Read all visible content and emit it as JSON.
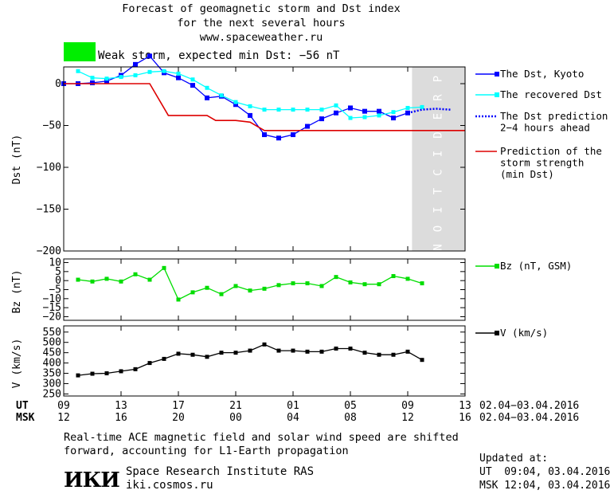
{
  "header": {
    "title_line1": "Forecast of geomagnetic storm and Dst index",
    "title_line2": "for the next several hours",
    "site": "www.spaceweather.ru"
  },
  "storm": {
    "label": "Weak storm, expected min Dst: −56 nT",
    "color": "#00ee00"
  },
  "prediction_band_text": "PREDICTION",
  "chart_data": [
    {
      "type": "line",
      "ylabel": "Dst (nT)",
      "ylim": [
        -200,
        20
      ],
      "yticks": [
        0,
        -50,
        -100,
        -150,
        -200
      ],
      "ytick_labels": [
        "0",
        "−50",
        "−100",
        "−150",
        "−200"
      ],
      "xlim": [
        9,
        37
      ],
      "prediction_start_x": 33.3,
      "series": [
        {
          "name": "The Dst, Kyoto",
          "color": "#0000ff",
          "marker": "square",
          "x": [
            9,
            10,
            11,
            12,
            13,
            14,
            15,
            16,
            17,
            18,
            19,
            20,
            21,
            22,
            23,
            24,
            25,
            26,
            27,
            28,
            29,
            30,
            31,
            32,
            33
          ],
          "y": [
            0,
            0,
            1,
            3,
            10,
            23,
            33,
            13,
            7,
            -2,
            -17,
            -15,
            -25,
            -38,
            -61,
            -65,
            -61,
            -51,
            -42,
            -35,
            -29,
            -33,
            -33,
            -41,
            -35
          ]
        },
        {
          "name": "The recovered Dst",
          "color": "#00ffff",
          "marker": "square",
          "x": [
            10,
            11,
            12,
            13,
            14,
            15,
            16,
            17,
            18,
            19,
            20,
            21,
            22,
            23,
            24,
            25,
            26,
            27,
            28,
            29,
            30,
            31,
            32,
            33,
            34
          ],
          "y": [
            15,
            7,
            6,
            8,
            10,
            14,
            15,
            12,
            5,
            -5,
            -14,
            -22,
            -27,
            -31,
            -31,
            -31,
            -31,
            -31,
            -26,
            -41,
            -40,
            -38,
            -34,
            -29,
            -28
          ]
        },
        {
          "name": "The Dst prediction 2−4 hours ahead",
          "color": "#0000ff",
          "style": "dotted",
          "x": [
            33,
            34,
            35,
            36
          ],
          "y": [
            -35,
            -31,
            -30,
            -31
          ]
        },
        {
          "name": "Prediction of the storm strength (min Dst)",
          "color": "#dd0000",
          "style": "step",
          "x": [
            9,
            15,
            16.3,
            19,
            19.6,
            21,
            22,
            23,
            24,
            25,
            26,
            27,
            28,
            29,
            30,
            31,
            32,
            33,
            34,
            35,
            36,
            37
          ],
          "y": [
            0,
            0,
            -38,
            -38,
            -44,
            -44,
            -46,
            -56,
            -56,
            -56,
            -56,
            -56,
            -56,
            -56,
            -56,
            -56,
            -56,
            -56,
            -56,
            -56,
            -56,
            -56
          ]
        }
      ]
    },
    {
      "type": "line",
      "ylabel": "Bz (nT)",
      "ylim": [
        -22,
        12
      ],
      "yticks": [
        10,
        5,
        0,
        -5,
        -10,
        -15,
        -20
      ],
      "ytick_labels": [
        "10",
        "5",
        "0",
        "−5",
        "−10",
        "−15",
        "−20"
      ],
      "series": [
        {
          "name": "Bz (nT, GSM)",
          "color": "#00dd00",
          "marker": "square",
          "x": [
            10,
            11,
            12,
            13,
            14,
            15,
            16,
            17,
            18,
            19,
            20,
            21,
            22,
            23,
            24,
            25,
            26,
            27,
            28,
            29,
            30,
            31,
            32,
            33,
            34
          ],
          "y": [
            0.5,
            -0.5,
            1,
            -0.5,
            3.5,
            0.5,
            7,
            -10.5,
            -6.5,
            -4,
            -7.5,
            -3,
            -5.5,
            -4.5,
            -2.5,
            -1.5,
            -1.5,
            -3,
            2,
            -1,
            -2,
            -2,
            2.5,
            1,
            -1.5
          ]
        }
      ]
    },
    {
      "type": "line",
      "ylabel": "V (km/s)",
      "ylim": [
        240,
        580
      ],
      "yticks": [
        550,
        500,
        450,
        400,
        350,
        300,
        250
      ],
      "ytick_labels": [
        "550",
        "500",
        "450",
        "400",
        "350",
        "300",
        "250"
      ],
      "series": [
        {
          "name": "V (km/s)",
          "color": "#000000",
          "marker": "square",
          "x": [
            10,
            11,
            12,
            13,
            14,
            15,
            16,
            17,
            18,
            19,
            20,
            21,
            22,
            23,
            24,
            25,
            26,
            27,
            28,
            29,
            30,
            31,
            32,
            33,
            34
          ],
          "y": [
            340,
            348,
            350,
            360,
            370,
            400,
            420,
            445,
            440,
            430,
            450,
            450,
            460,
            490,
            460,
            460,
            455,
            455,
            470,
            470,
            450,
            440,
            440,
            455,
            415
          ]
        }
      ]
    }
  ],
  "time_axis": {
    "ut_label": "UT",
    "msk_label": "MSK",
    "x": [
      9,
      13,
      17,
      21,
      25,
      29,
      33,
      37
    ],
    "ut_ticks": [
      "09",
      "13",
      "17",
      "21",
      "01",
      "05",
      "09",
      "13"
    ],
    "msk_ticks": [
      "12",
      "16",
      "20",
      "00",
      "04",
      "08",
      "12",
      "16"
    ],
    "ut_range": "02.04−03.04.2016",
    "msk_range": "02.04−03.04.2016"
  },
  "footer": {
    "note_line1": "Real-time ACE magnetic field and solar wind speed are shifted",
    "note_line2": "forward, accounting for L1-Earth propagation",
    "logo_text": "ИКИ",
    "institute": "Space Research Institute RAS",
    "site": "iki.cosmos.ru",
    "updated_label": "Updated at:",
    "updated_ut": "UT  09:04, 03.04.2016",
    "updated_msk": "MSK 12:04, 03.04.2016"
  }
}
